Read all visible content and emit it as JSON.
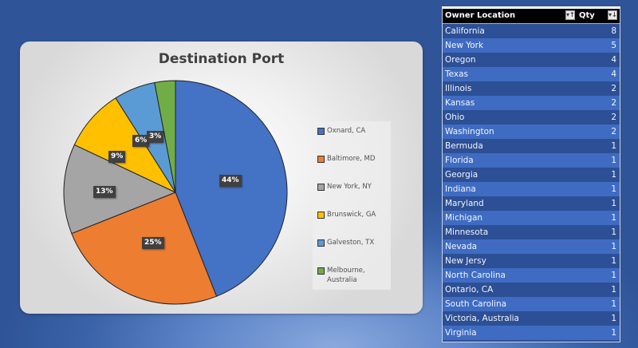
{
  "chart_data": {
    "type": "pie",
    "title": "Destination Port",
    "categories": [
      "Oxnard, CA",
      "Baltimore, MD",
      "New York, NY",
      "Brunswick, GA",
      "Galveston, TX",
      "Melbourne, Australia"
    ],
    "values": [
      44,
      25,
      13,
      9,
      6,
      3
    ],
    "value_labels": [
      "44%",
      "25%",
      "13%",
      "9%",
      "6%",
      "3%"
    ],
    "colors": [
      "#4472c4",
      "#ed7d31",
      "#a5a5a5",
      "#ffc000",
      "#5b9bd5",
      "#70ad47"
    ],
    "legend_position": "right"
  },
  "chart": {
    "title": "Destination Port",
    "legend": [
      {
        "label": "Oxnard, CA",
        "color": "#4472c4"
      },
      {
        "label": "Baltimore, MD",
        "color": "#ed7d31"
      },
      {
        "label": "New York, NY",
        "color": "#a5a5a5"
      },
      {
        "label": "Brunswick, GA",
        "color": "#ffc000"
      },
      {
        "label": "Galveston, TX",
        "color": "#5b9bd5"
      },
      {
        "label": "Melbourne, Australia",
        "color": "#70ad47"
      }
    ],
    "labels": [
      "44%",
      "25%",
      "13%",
      "9%",
      "6%",
      "3%"
    ]
  },
  "table": {
    "headers": {
      "location": "Owner Location",
      "qty": "Qty",
      "location_filter_icon": "▾↑",
      "qty_filter_icon": "▾↓"
    },
    "rows": [
      {
        "location": "California",
        "qty": "8"
      },
      {
        "location": "New York",
        "qty": "5"
      },
      {
        "location": "Oregon",
        "qty": "4"
      },
      {
        "location": "Texas",
        "qty": "4"
      },
      {
        "location": "Illinois",
        "qty": "2"
      },
      {
        "location": "Kansas",
        "qty": "2"
      },
      {
        "location": "Ohio",
        "qty": "2"
      },
      {
        "location": "Washington",
        "qty": "2"
      },
      {
        "location": "Bermuda",
        "qty": "1"
      },
      {
        "location": "Florida",
        "qty": "1"
      },
      {
        "location": "Georgia",
        "qty": "1"
      },
      {
        "location": "Indiana",
        "qty": "1"
      },
      {
        "location": "Maryland",
        "qty": "1"
      },
      {
        "location": "Michigan",
        "qty": "1"
      },
      {
        "location": "Minnesota",
        "qty": "1"
      },
      {
        "location": "Nevada",
        "qty": "1"
      },
      {
        "location": "New Jersy",
        "qty": "1"
      },
      {
        "location": "North Carolina",
        "qty": "1"
      },
      {
        "location": "Ontario, CA",
        "qty": "1"
      },
      {
        "location": "South Carolina",
        "qty": "1"
      },
      {
        "location": "Victoria, Australia",
        "qty": "1"
      },
      {
        "location": "Virginia",
        "qty": "1"
      }
    ]
  }
}
